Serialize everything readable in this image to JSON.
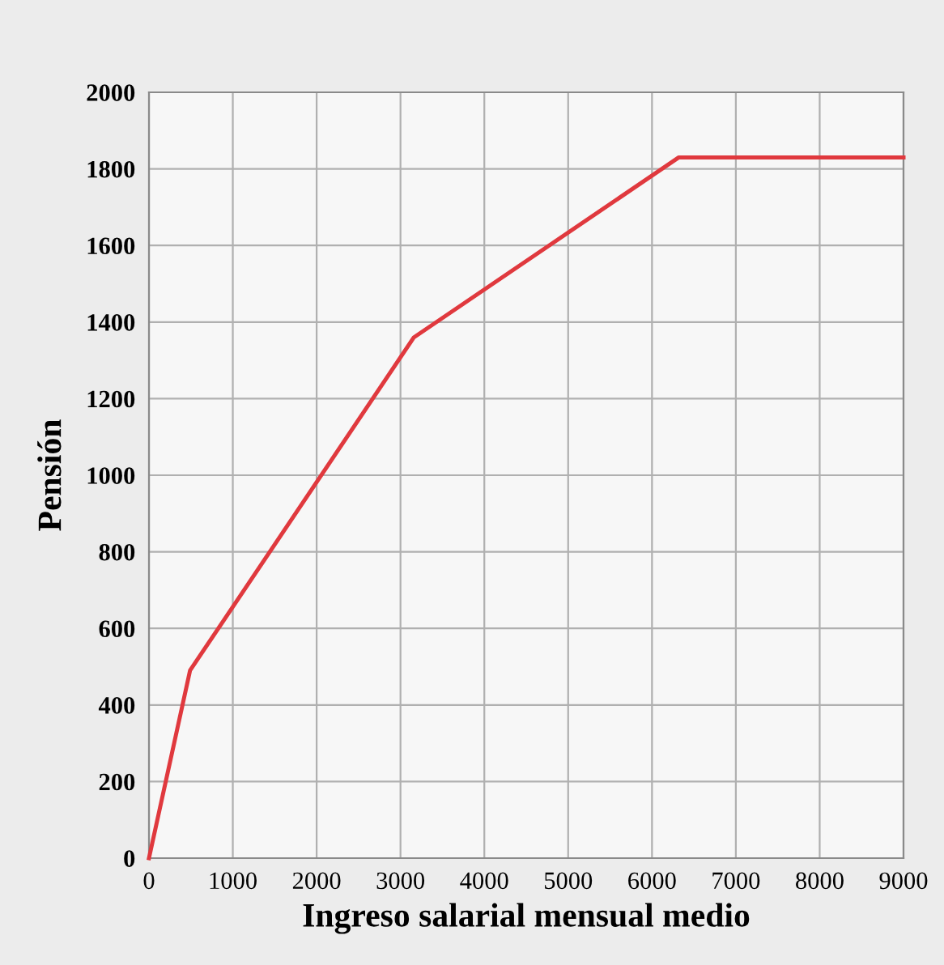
{
  "chart_data": {
    "type": "line",
    "xlabel": "Ingreso salarial mensual medio",
    "ylabel": "Pensión",
    "x": [
      0,
      490,
      3160,
      6320,
      9000
    ],
    "series": [
      {
        "color": "#e0393e",
        "values": [
          0,
          490,
          1360,
          1830,
          1830
        ]
      }
    ],
    "xlim": [
      0,
      9000
    ],
    "ylim": [
      0,
      2000
    ],
    "xticks": [
      0,
      1000,
      2000,
      3000,
      4000,
      5000,
      6000,
      7000,
      8000,
      9000
    ],
    "yticks": [
      0,
      200,
      400,
      600,
      800,
      1000,
      1200,
      1400,
      1600,
      1800,
      2000
    ],
    "grid": true,
    "marker": "none",
    "line_style": "solid"
  }
}
